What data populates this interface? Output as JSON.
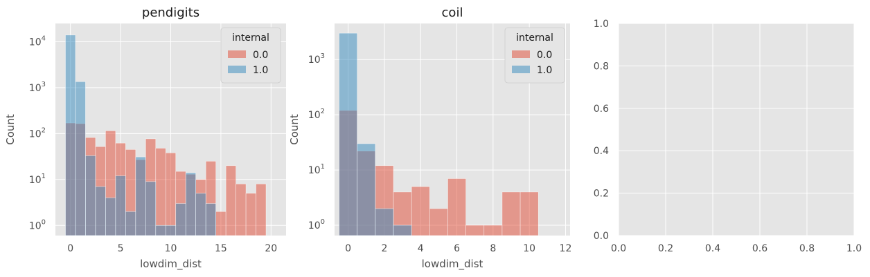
{
  "chart_data": [
    {
      "type": "histogram",
      "title": "pendigits",
      "xlabel": "lowdim_dist",
      "ylabel": "Count",
      "yscale": "log",
      "xlim": [
        -1.5,
        21.5
      ],
      "ylim": [
        0.6,
        25000
      ],
      "xticks": [
        0,
        5,
        10,
        15,
        20
      ],
      "yticks": [
        1,
        10,
        100,
        1000,
        10000
      ],
      "ytick_labels": [
        {
          "base": "10",
          "exp": "0"
        },
        {
          "base": "10",
          "exp": "1"
        },
        {
          "base": "10",
          "exp": "2"
        },
        {
          "base": "10",
          "exp": "3"
        },
        {
          "base": "10",
          "exp": "4"
        }
      ],
      "bin_edges": [
        -0.5,
        0.5,
        1.5,
        2.5,
        3.5,
        4.5,
        5.5,
        6.5,
        7.5,
        8.5,
        9.5,
        10.5,
        11.5,
        12.5,
        13.5,
        14.5,
        15.5,
        16.5,
        17.5,
        18.5,
        19.5
      ],
      "legend": {
        "title": "internal",
        "position": "upper right"
      },
      "series": [
        {
          "name": "0.0",
          "color": "#e24a33",
          "values": [
            170,
            165,
            82,
            52,
            115,
            62,
            45,
            27,
            77,
            48,
            38,
            15,
            13,
            10,
            25,
            2,
            20,
            8,
            5,
            8
          ]
        },
        {
          "name": "1.0",
          "color": "#348abd",
          "values": [
            14000,
            1350,
            33,
            7,
            4,
            12,
            2,
            31,
            9,
            1,
            1,
            3,
            14,
            5,
            3,
            0,
            0,
            0,
            0,
            0
          ]
        }
      ]
    },
    {
      "type": "histogram",
      "title": "coil",
      "xlabel": "lowdim_dist",
      "ylabel": "Count",
      "yscale": "log",
      "xlim": [
        -0.75,
        12.25
      ],
      "ylim": [
        0.65,
        4500
      ],
      "xticks": [
        0,
        2,
        4,
        6,
        8,
        10,
        12
      ],
      "yticks": [
        1,
        10,
        100,
        1000
      ],
      "ytick_labels": [
        {
          "base": "10",
          "exp": "0"
        },
        {
          "base": "10",
          "exp": "1"
        },
        {
          "base": "10",
          "exp": "2"
        },
        {
          "base": "10",
          "exp": "3"
        }
      ],
      "bin_edges": [
        -0.5,
        0.5,
        1.5,
        2.5,
        3.5,
        4.5,
        5.5,
        6.5,
        7.5,
        8.5,
        9.5,
        10.5
      ],
      "legend": {
        "title": "internal",
        "position": "upper right"
      },
      "series": [
        {
          "name": "0.0",
          "color": "#e24a33",
          "values": [
            120,
            22,
            12,
            4,
            5,
            2,
            7,
            1,
            1,
            4,
            4
          ]
        },
        {
          "name": "1.0",
          "color": "#348abd",
          "values": [
            3000,
            30,
            2,
            1,
            0,
            0,
            0,
            0,
            0,
            0,
            0
          ]
        }
      ]
    },
    {
      "type": "empty",
      "title": "",
      "xlim": [
        0,
        1
      ],
      "ylim": [
        0,
        1
      ],
      "xticks": [
        0.0,
        0.2,
        0.4,
        0.6,
        0.8,
        1.0
      ],
      "yticks": [
        0.0,
        0.2,
        0.4,
        0.6,
        0.8,
        1.0
      ],
      "xtick_labels": [
        "0.0",
        "0.2",
        "0.4",
        "0.6",
        "0.8",
        "1.0"
      ],
      "ytick_labels": [
        "0.0",
        "0.2",
        "0.4",
        "0.6",
        "0.8",
        "1.0"
      ]
    }
  ]
}
